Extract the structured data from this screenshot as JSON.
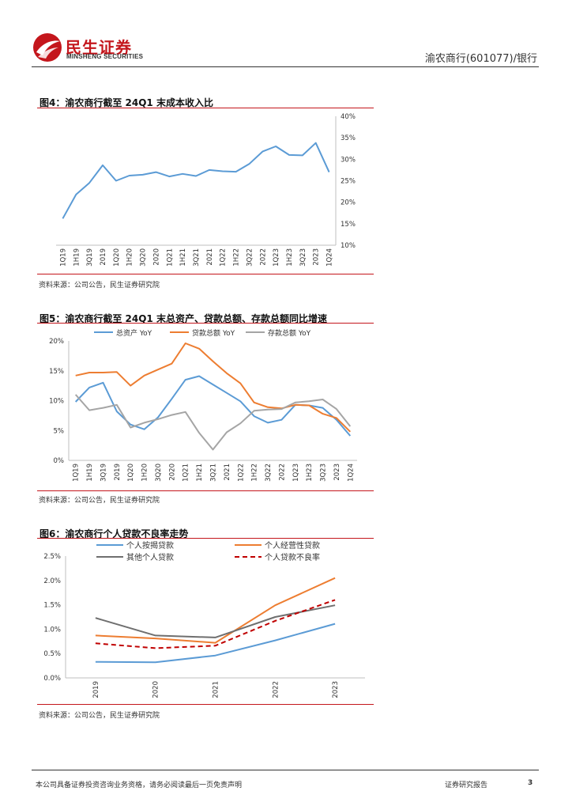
{
  "header": {
    "logo_cn": "民生证券",
    "logo_en": "MINSHENG SECURITIES",
    "company": "渝农商行(601077)/银行"
  },
  "figures": {
    "fig4": {
      "title": "图4：渝农商行截至 24Q1 末成本收入比",
      "source": "资料来源：公司公告，民生证券研究院"
    },
    "fig5": {
      "title": "图5：渝农商行截至 24Q1 末总资产、贷款总额、存款总额同比增速",
      "source": "资料来源：公司公告，民生证券研究院"
    },
    "fig6": {
      "title": "图6：渝农商行个人贷款不良率走势",
      "source": "资料来源：公司公告，民生证券研究院"
    }
  },
  "footer": {
    "disclaimer": "本公司具备证券投资咨询业务资格，请务必阅读最后一页免责声明",
    "report_type": "证券研究报告",
    "page": "3"
  },
  "colors": {
    "brand_red": "#c4161c",
    "blue": "#5b9bd5",
    "orange": "#ed7d31",
    "gray": "#a5a5a5",
    "dark_gray": "#6f6f6f",
    "dark_red": "#c00000"
  },
  "chart_data": [
    {
      "type": "line",
      "categories": [
        "1Q19",
        "1H19",
        "3Q19",
        "2019",
        "1Q20",
        "1H20",
        "3Q20",
        "2020",
        "1Q21",
        "1H21",
        "3Q21",
        "2021",
        "1Q22",
        "1H22",
        "3Q22",
        "2022",
        "1Q23",
        "1H23",
        "3Q23",
        "2023",
        "1Q24"
      ],
      "series": [
        {
          "values": [
            16.2,
            21.8,
            24.5,
            28.6,
            25.0,
            26.2,
            26.4,
            27.0,
            26.0,
            26.6,
            26.1,
            27.5,
            27.2,
            27.1,
            28.9,
            31.8,
            33.0,
            31.0,
            30.9,
            33.8,
            27.0
          ],
          "color": "#5b9bd5"
        }
      ],
      "ylim": [
        10,
        40
      ],
      "yticks": [
        "10%",
        "15%",
        "20%",
        "25%",
        "30%",
        "35%",
        "40%"
      ],
      "y_axis_side": "right",
      "grid": false
    },
    {
      "type": "line",
      "categories": [
        "1Q19",
        "1H19",
        "3Q19",
        "2019",
        "1Q20",
        "1H20",
        "3Q20",
        "2020",
        "1Q21",
        "1H21",
        "3Q21",
        "2021",
        "1Q22",
        "1H22",
        "3Q22",
        "2022",
        "1Q23",
        "1H23",
        "3Q23",
        "2023",
        "1Q24"
      ],
      "series": [
        {
          "name": "总资产 YoY",
          "color": "#5b9bd5",
          "values": [
            9.8,
            12.2,
            13.0,
            8.2,
            6.0,
            5.2,
            7.2,
            10.3,
            13.5,
            14.1,
            12.7,
            11.3,
            9.9,
            7.4,
            6.3,
            6.8,
            9.3,
            9.2,
            8.8,
            6.8,
            4.1
          ]
        },
        {
          "name": "贷款总额 YoY",
          "color": "#ed7d31",
          "values": [
            14.2,
            14.7,
            14.7,
            14.8,
            12.5,
            14.2,
            15.2,
            16.2,
            19.6,
            18.7,
            16.6,
            14.6,
            12.9,
            9.7,
            8.9,
            8.7,
            9.3,
            9.2,
            7.8,
            7.1,
            4.8
          ]
        },
        {
          "name": "存款总额 YoY",
          "color": "#a5a5a5",
          "values": [
            11.0,
            8.4,
            8.8,
            9.3,
            5.5,
            6.3,
            6.9,
            7.6,
            8.1,
            4.6,
            1.8,
            4.7,
            6.2,
            8.3,
            8.5,
            8.6,
            9.7,
            9.9,
            10.2,
            8.6,
            5.7
          ]
        }
      ],
      "ylim": [
        0,
        20
      ],
      "yticks": [
        "0%",
        "5%",
        "10%",
        "15%",
        "20%"
      ],
      "legend": "top",
      "grid": false
    },
    {
      "type": "line",
      "categories": [
        "2019",
        "2020",
        "2021",
        "2022",
        "2023"
      ],
      "series": [
        {
          "name": "个人按揭贷款",
          "color": "#5b9bd5",
          "dash": false,
          "values": [
            0.33,
            0.32,
            0.46,
            0.77,
            1.11
          ]
        },
        {
          "name": "个人经营性贷款",
          "color": "#ed7d31",
          "dash": false,
          "values": [
            0.87,
            0.81,
            0.72,
            1.49,
            2.05
          ]
        },
        {
          "name": "其他个人贷款",
          "color": "#6f6f6f",
          "dash": false,
          "values": [
            1.23,
            0.87,
            0.83,
            1.25,
            1.49
          ]
        },
        {
          "name": "个人贷款不良率",
          "color": "#c00000",
          "dash": true,
          "values": [
            0.71,
            0.61,
            0.66,
            1.17,
            1.6
          ]
        }
      ],
      "ylim": [
        0,
        2.5
      ],
      "yticks": [
        "0.0%",
        "0.5%",
        "1.0%",
        "1.5%",
        "2.0%",
        "2.5%"
      ],
      "legend": "top",
      "grid": false
    }
  ]
}
